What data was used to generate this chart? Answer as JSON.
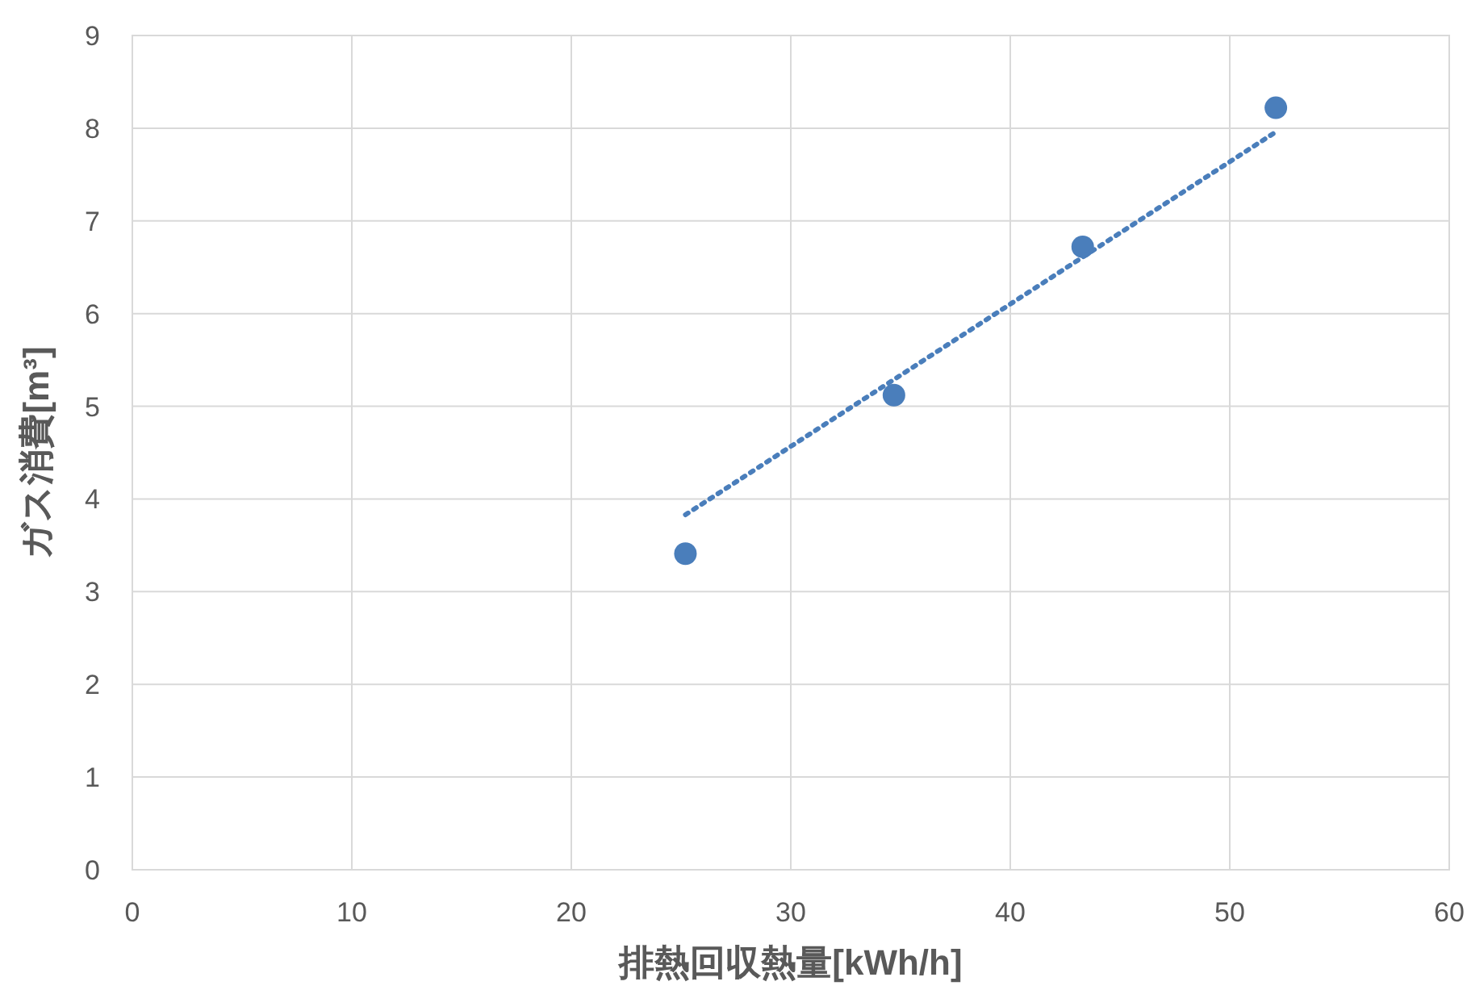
{
  "chart_data": {
    "type": "scatter",
    "xlabel": "排熱回収熱量[kWh/h]",
    "ylabel": "ガス消費[m³]",
    "xlim": [
      0,
      60
    ],
    "xticks": [
      0,
      10,
      20,
      30,
      40,
      50,
      60
    ],
    "ylim": [
      0,
      9
    ],
    "yticks": [
      0,
      1,
      2,
      3,
      4,
      5,
      6,
      7,
      8,
      9
    ],
    "grid": true,
    "series": [
      {
        "type": "scatter",
        "color": "#4a7ebb",
        "marker": "circle",
        "x": [
          25.2,
          34.7,
          43.3,
          52.1
        ],
        "values": [
          3.41,
          5.12,
          6.72,
          8.22
        ]
      },
      {
        "type": "line",
        "color": "#4a7ebb",
        "marker": "none",
        "line_style": "dotted",
        "x": [
          25.2,
          52.1
        ],
        "values": [
          3.83,
          7.96
        ]
      }
    ]
  }
}
